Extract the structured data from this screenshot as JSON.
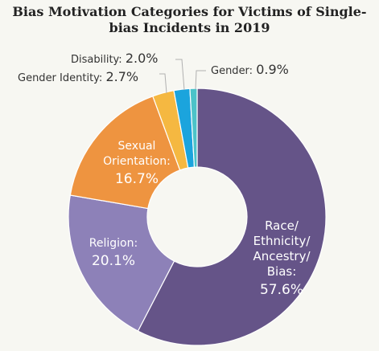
{
  "chart_data": {
    "type": "pie",
    "title_lines": [
      "Bias Motivation Categories for Victims of Single-",
      "bias Incidents in 2019"
    ],
    "slices": [
      {
        "name": "Race/Ethnicity/Ancestry/Bias",
        "label_lines": [
          "Race/",
          "Ethnicity/",
          "Ancestry/",
          "Bias:"
        ],
        "value": 57.6,
        "value_label": "57.6%",
        "color": "#655488",
        "label_position": "inside"
      },
      {
        "name": "Religion",
        "label_lines": [
          "Religion:"
        ],
        "value": 20.1,
        "value_label": "20.1%",
        "color": "#8d81b8",
        "label_position": "inside"
      },
      {
        "name": "Sexual Orientation",
        "label_lines": [
          "Sexual",
          "Orientation:"
        ],
        "value": 16.7,
        "value_label": "16.7%",
        "color": "#ee9440",
        "label_position": "inside"
      },
      {
        "name": "Gender Identity",
        "label_lines": [
          "Gender Identity:"
        ],
        "value": 2.7,
        "value_label": "2.7%",
        "color": "#f5b841",
        "label_position": "outside-left"
      },
      {
        "name": "Disability",
        "label_lines": [
          "Disability:"
        ],
        "value": 2.0,
        "value_label": "2.0%",
        "color": "#1ba4dd",
        "label_position": "outside-left"
      },
      {
        "name": "Gender",
        "label_lines": [
          "Gender:"
        ],
        "value": 0.9,
        "value_label": "0.9%",
        "color": "#4cc3c9",
        "label_position": "outside-right"
      }
    ],
    "start_angle_deg": 0,
    "direction": "clockwise",
    "donut": true,
    "legend": "none"
  }
}
